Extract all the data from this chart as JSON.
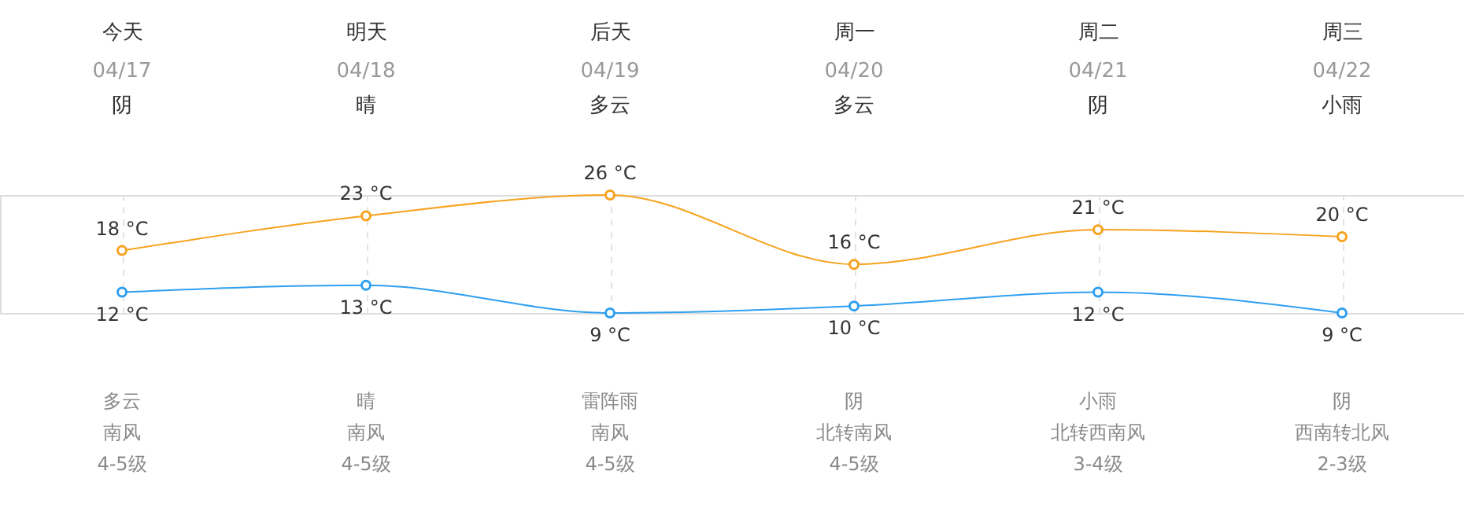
{
  "chart_data": {
    "type": "line",
    "categories": [
      "今天",
      "明天",
      "后天",
      "周一",
      "周二",
      "周三"
    ],
    "series": [
      {
        "color": "#f7a21e",
        "values": [
          18,
          23,
          26,
          16,
          21,
          20
        ],
        "value_labels": [
          "18 °C",
          "23 °C",
          "26 °C",
          "16 °C",
          "21 °C",
          "20 °C"
        ]
      },
      {
        "color": "#2f9ff0",
        "values": [
          12,
          13,
          9,
          10,
          12,
          9
        ],
        "value_labels": [
          "12 °C",
          "13 °C",
          "9 °C",
          "10 °C",
          "12 °C",
          "9 °C"
        ]
      }
    ],
    "annotations": [
      "04/17",
      "阴",
      "多云",
      "南风",
      "4-5级",
      "04/18",
      "晴",
      "晴",
      "南风",
      "4-5级",
      "04/19",
      "多云",
      "雷阵雨",
      "南风",
      "4-5级",
      "04/20",
      "多云",
      "阴",
      "北转南风",
      "4-5级",
      "04/21",
      "阴",
      "小雨",
      "北转西南风",
      "3-4级",
      "04/22",
      "小雨",
      "阴",
      "西南转北风",
      "2-3级"
    ],
    "grid": "x",
    "marker": "circle",
    "line_style": "solid"
  }
}
